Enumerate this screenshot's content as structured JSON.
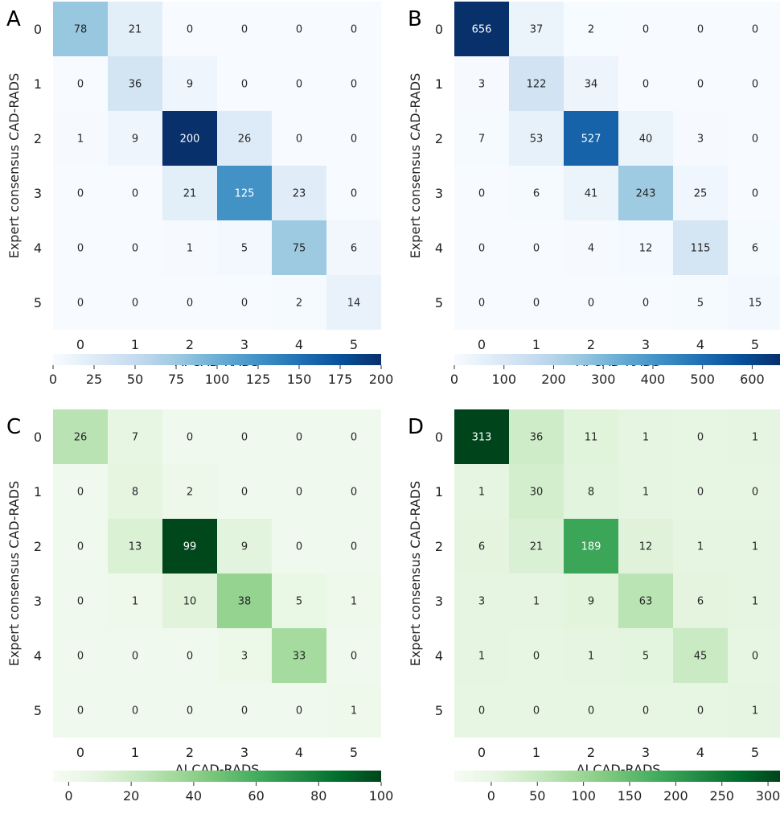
{
  "chart_data": [
    {
      "type": "heatmap",
      "panel_label": "A",
      "xlabel": "AI CAD-RADS",
      "ylabel": "Expert consensus CAD-RADS",
      "x_categories": [
        "0",
        "1",
        "2",
        "3",
        "4",
        "5"
      ],
      "y_categories": [
        "0",
        "1",
        "2",
        "3",
        "4",
        "5"
      ],
      "values": [
        [
          78,
          21,
          0,
          0,
          0,
          0
        ],
        [
          0,
          36,
          9,
          0,
          0,
          0
        ],
        [
          1,
          9,
          200,
          26,
          0,
          0
        ],
        [
          0,
          0,
          21,
          125,
          23,
          0
        ],
        [
          0,
          0,
          1,
          5,
          75,
          6
        ],
        [
          0,
          0,
          0,
          0,
          2,
          14
        ]
      ],
      "colormap": "Blues",
      "vmin": 0,
      "vmax": 200,
      "colorbar_ticks": [
        0,
        25,
        50,
        75,
        100,
        125,
        150,
        175,
        200
      ],
      "colorbar_placement": "bottom"
    },
    {
      "type": "heatmap",
      "panel_label": "B",
      "xlabel": "AI CAD-RADS",
      "ylabel": "Expert consensus CAD-RADS",
      "x_categories": [
        "0",
        "1",
        "2",
        "3",
        "4",
        "5"
      ],
      "y_categories": [
        "0",
        "1",
        "2",
        "3",
        "4",
        "5"
      ],
      "values": [
        [
          656,
          37,
          2,
          0,
          0,
          0
        ],
        [
          3,
          122,
          34,
          0,
          0,
          0
        ],
        [
          7,
          53,
          527,
          40,
          3,
          0
        ],
        [
          0,
          6,
          41,
          243,
          25,
          0
        ],
        [
          0,
          0,
          4,
          12,
          115,
          6
        ],
        [
          0,
          0,
          0,
          0,
          5,
          15
        ]
      ],
      "colormap": "Blues",
      "vmin": 0,
      "vmax": 656,
      "colorbar_ticks": [
        0,
        100,
        200,
        300,
        400,
        500,
        600
      ],
      "colorbar_placement": "bottom"
    },
    {
      "type": "heatmap",
      "panel_label": "C",
      "xlabel": "AI CAD-RADS",
      "ylabel": "Expert consensus CAD-RADS",
      "x_categories": [
        "0",
        "1",
        "2",
        "3",
        "4",
        "5"
      ],
      "y_categories": [
        "0",
        "1",
        "2",
        "3",
        "4",
        "5"
      ],
      "values": [
        [
          26,
          7,
          0,
          0,
          0,
          0
        ],
        [
          0,
          8,
          2,
          0,
          0,
          0
        ],
        [
          0,
          13,
          99,
          9,
          0,
          0
        ],
        [
          0,
          1,
          10,
          38,
          5,
          1
        ],
        [
          0,
          0,
          0,
          3,
          33,
          0
        ],
        [
          0,
          0,
          0,
          0,
          0,
          1
        ]
      ],
      "colormap": "Greens",
      "vmin": -5,
      "vmax": 100,
      "colorbar_ticks": [
        0,
        20,
        40,
        60,
        80,
        100
      ],
      "colorbar_placement": "bottom"
    },
    {
      "type": "heatmap",
      "panel_label": "D",
      "xlabel": "AI CAD-RADS",
      "ylabel": "Expert consensus CAD-RADS",
      "x_categories": [
        "0",
        "1",
        "2",
        "3",
        "4",
        "5"
      ],
      "y_categories": [
        "0",
        "1",
        "2",
        "3",
        "4",
        "5"
      ],
      "values": [
        [
          313,
          36,
          11,
          1,
          0,
          1
        ],
        [
          1,
          30,
          8,
          1,
          0,
          0
        ],
        [
          6,
          21,
          189,
          12,
          1,
          1
        ],
        [
          3,
          1,
          9,
          63,
          6,
          1
        ],
        [
          1,
          0,
          1,
          5,
          45,
          0
        ],
        [
          0,
          0,
          0,
          0,
          0,
          1
        ]
      ],
      "colormap": "Greens",
      "vmin": -40,
      "vmax": 313,
      "colorbar_ticks": [
        0,
        50,
        100,
        150,
        200,
        250,
        300
      ],
      "colorbar_placement": "bottom"
    }
  ]
}
